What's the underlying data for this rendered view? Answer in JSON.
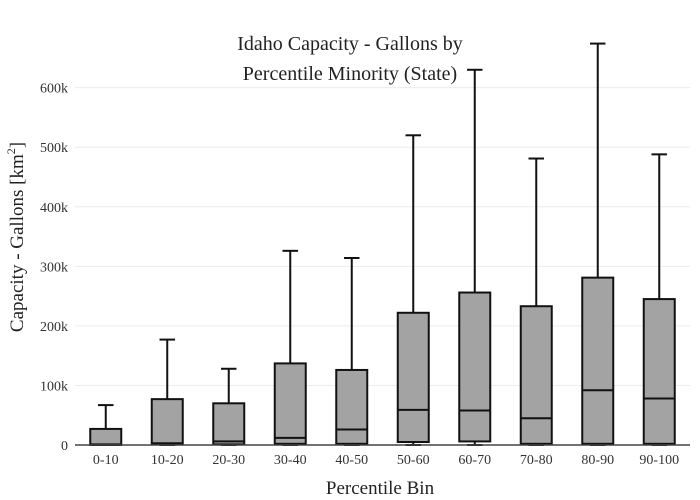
{
  "chart_data": {
    "type": "box",
    "title_lines": [
      "Idaho Capacity - Gallons by",
      "Percentile Minority (State)"
    ],
    "xlabel": "Percentile Bin",
    "ylabel_prefix": "Capacity - Gallons  [km",
    "ylabel_sup": "2",
    "ylabel_suffix": "]",
    "ylim": [
      0,
      680000
    ],
    "yticks": [
      0,
      100000,
      200000,
      300000,
      400000,
      500000,
      600000
    ],
    "ytick_labels": [
      "0",
      "100k",
      "200k",
      "300k",
      "400k",
      "500k",
      "600k"
    ],
    "grid": true,
    "box_color": "#a3a3a3",
    "line_color": "#111111",
    "categories": [
      "0-10",
      "10-20",
      "20-30",
      "30-40",
      "40-50",
      "50-60",
      "60-70",
      "70-80",
      "80-90",
      "90-100"
    ],
    "boxes": [
      {
        "min": 0,
        "q1": 0,
        "median": 1000,
        "q3": 27000,
        "max": 67000
      },
      {
        "min": 0,
        "q1": 1000,
        "median": 3000,
        "q3": 77000,
        "max": 177000
      },
      {
        "min": 0,
        "q1": 1000,
        "median": 6000,
        "q3": 70000,
        "max": 128000
      },
      {
        "min": 0,
        "q1": 2000,
        "median": 12000,
        "q3": 137000,
        "max": 326000
      },
      {
        "min": 0,
        "q1": 2000,
        "median": 26000,
        "q3": 126000,
        "max": 314000
      },
      {
        "min": 0,
        "q1": 5000,
        "median": 59000,
        "q3": 222000,
        "max": 520000
      },
      {
        "min": 0,
        "q1": 6000,
        "median": 58000,
        "q3": 256000,
        "max": 630000
      },
      {
        "min": 0,
        "q1": 2000,
        "median": 45000,
        "q3": 233000,
        "max": 481000
      },
      {
        "min": 0,
        "q1": 2000,
        "median": 92000,
        "q3": 281000,
        "max": 674000
      },
      {
        "min": 0,
        "q1": 2000,
        "median": 78000,
        "q3": 245000,
        "max": 488000
      }
    ]
  }
}
